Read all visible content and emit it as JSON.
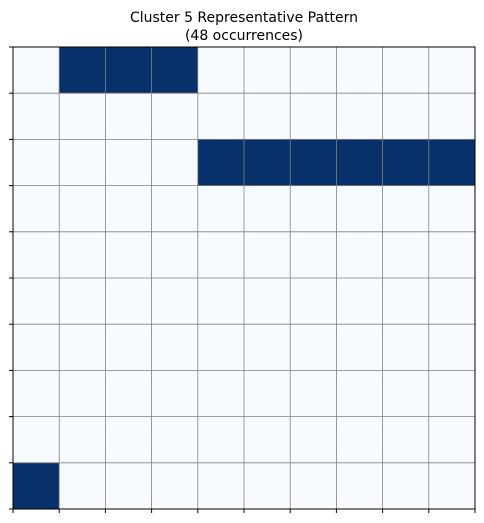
{
  "chart_data": {
    "type": "heatmap",
    "title": "Cluster 5 Representative Pattern",
    "subtitle": "(48 occurrences)",
    "xlabel": "",
    "ylabel": "",
    "rows": 10,
    "cols": 10,
    "colors": {
      "off": "#f7fbff",
      "on": "#08306b",
      "grid": "#808080",
      "frame": "#000000"
    },
    "grid": true,
    "tick_labels_shown": false,
    "values": [
      [
        0,
        1,
        1,
        1,
        0,
        0,
        0,
        0,
        0,
        0
      ],
      [
        0,
        0,
        0,
        0,
        0,
        0,
        0,
        0,
        0,
        0
      ],
      [
        0,
        0,
        0,
        0,
        1,
        1,
        1,
        1,
        1,
        1
      ],
      [
        0,
        0,
        0,
        0,
        0,
        0,
        0,
        0,
        0,
        0
      ],
      [
        0,
        0,
        0,
        0,
        0,
        0,
        0,
        0,
        0,
        0
      ],
      [
        0,
        0,
        0,
        0,
        0,
        0,
        0,
        0,
        0,
        0
      ],
      [
        0,
        0,
        0,
        0,
        0,
        0,
        0,
        0,
        0,
        0
      ],
      [
        0,
        0,
        0,
        0,
        0,
        0,
        0,
        0,
        0,
        0
      ],
      [
        0,
        0,
        0,
        0,
        0,
        0,
        0,
        0,
        0,
        0
      ],
      [
        1,
        0,
        0,
        0,
        0,
        0,
        0,
        0,
        0,
        0
      ]
    ]
  }
}
